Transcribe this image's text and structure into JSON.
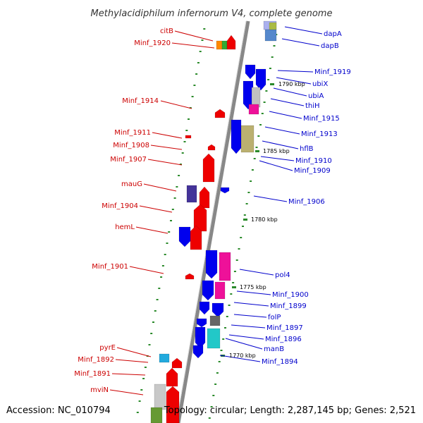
{
  "title": "Methylacidiphilum infernorum V4, complete genome",
  "footer": {
    "accession": "Accession: NC_010794",
    "topology": "Topology: circular; Length: 2,287,145 bp; Genes: 2,521"
  },
  "colors": {
    "reverse_label": "#cc0000",
    "forward_label": "#0000cc",
    "backbone": "#888888",
    "tick": "#2a8a2a",
    "blue_gene": "#0000ee",
    "red_gene": "#ee0000"
  },
  "scale_ticks": [
    "1790 kbp",
    "1785 kbp",
    "1780 kbp",
    "1775 kbp",
    "1770 kbp"
  ],
  "left_labels": [
    "citB",
    "Minf_1920",
    "Minf_1914",
    "Minf_1911",
    "Minf_1908",
    "Minf_1907",
    "mauG",
    "Minf_1904",
    "hemL",
    "Minf_1901",
    "pyrE",
    "Minf_1892",
    "Minf_1891",
    "mviN"
  ],
  "right_labels": [
    "dapA",
    "dapB",
    "Minf_1919",
    "ubiX",
    "ubiA",
    "thiH",
    "Minf_1915",
    "Minf_1913",
    "hflB",
    "Minf_1910",
    "Minf_1909",
    "Minf_1906",
    "pol4",
    "Minf_1900",
    "Minf_1899",
    "folP",
    "Minf_1897",
    "Minf_1896",
    "manB",
    "Minf_1894"
  ]
}
